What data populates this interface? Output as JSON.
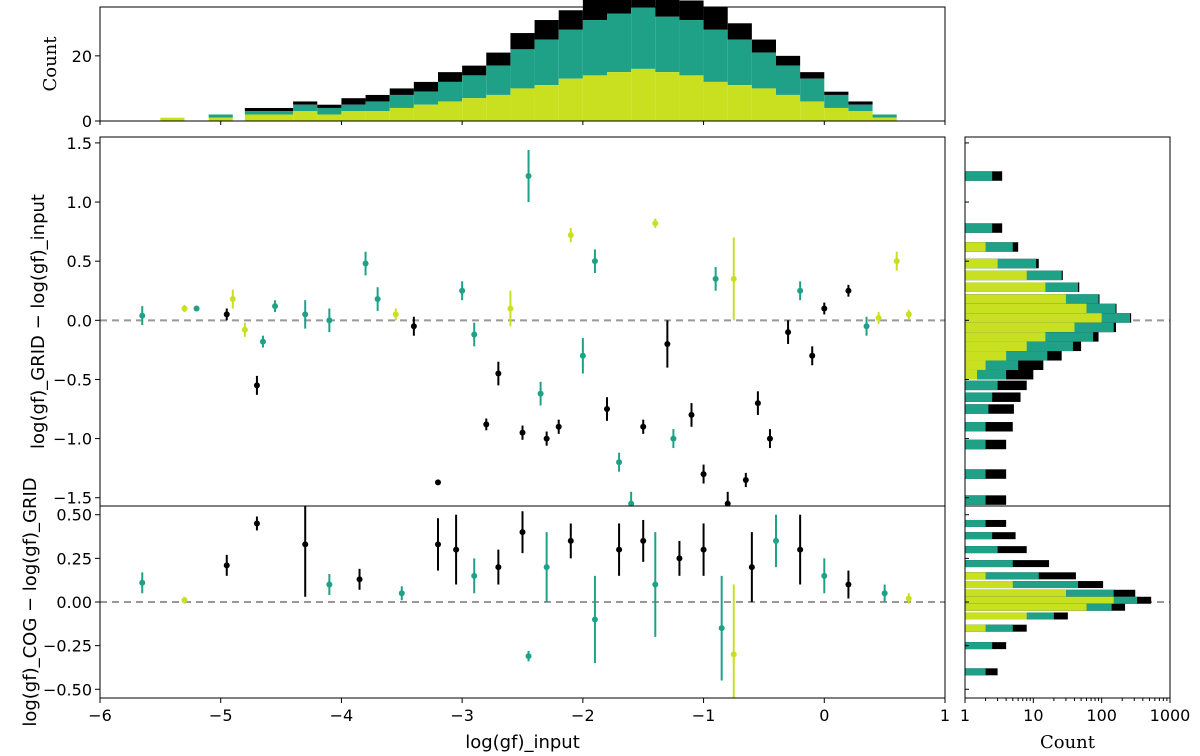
{
  "chart_data": {
    "type": "scatter",
    "colors": {
      "black": "#000000",
      "teal": "#1fa187",
      "lime": "#c8e020",
      "refline": "#999999"
    },
    "top_histogram": {
      "ylabel": "Count",
      "ylim": [
        0,
        35
      ],
      "yticks": [
        "0",
        "20"
      ],
      "bins_x": [
        -5.4,
        -5.0,
        -4.7,
        -4.5,
        -4.3,
        -4.1,
        -3.9,
        -3.7,
        -3.5,
        -3.3,
        -3.1,
        -2.9,
        -2.7,
        -2.5,
        -2.3,
        -2.1,
        -1.9,
        -1.7,
        -1.5,
        -1.3,
        -1.1,
        -0.9,
        -0.7,
        -0.5,
        -0.3,
        -0.1,
        0.1,
        0.3,
        0.5
      ],
      "lime": [
        1,
        1,
        2,
        2,
        3,
        2,
        3,
        3,
        4,
        5,
        6,
        7,
        8,
        10,
        11,
        13,
        14,
        15,
        16,
        15,
        14,
        12,
        11,
        10,
        8,
        6,
        4,
        3,
        1
      ],
      "teal": [
        0,
        1,
        1,
        1,
        2,
        2,
        2,
        3,
        4,
        4,
        6,
        7,
        9,
        12,
        14,
        15,
        17,
        18,
        19,
        17,
        17,
        16,
        14,
        11,
        9,
        7,
        4,
        2,
        1
      ],
      "black": [
        0,
        0,
        1,
        1,
        1,
        1,
        2,
        2,
        2,
        3,
        3,
        3,
        4,
        5,
        6,
        6,
        7,
        6,
        5,
        6,
        6,
        7,
        5,
        4,
        3,
        2,
        1,
        1,
        0
      ]
    },
    "main_panel": {
      "ylabel": "log(gf)_GRID − log(gf)_input",
      "ylim": [
        -1.57,
        1.55
      ],
      "yticks": [
        "1.5",
        "1.0",
        "0.5",
        "0.0",
        "−0.5",
        "−1.0",
        "−1.5"
      ],
      "points": [
        {
          "x": -5.65,
          "y": 0.04,
          "e": 0.08,
          "c": "teal"
        },
        {
          "x": -5.3,
          "y": 0.1,
          "e": 0.03,
          "c": "lime"
        },
        {
          "x": -5.2,
          "y": 0.1,
          "e": 0.02,
          "c": "teal"
        },
        {
          "x": -4.95,
          "y": 0.05,
          "e": 0.05,
          "c": "black"
        },
        {
          "x": -4.9,
          "y": 0.18,
          "e": 0.08,
          "c": "lime"
        },
        {
          "x": -4.8,
          "y": -0.08,
          "e": 0.06,
          "c": "lime"
        },
        {
          "x": -4.7,
          "y": -0.55,
          "e": 0.08,
          "c": "black"
        },
        {
          "x": -4.65,
          "y": -0.18,
          "e": 0.05,
          "c": "teal"
        },
        {
          "x": -4.55,
          "y": 0.12,
          "e": 0.05,
          "c": "teal"
        },
        {
          "x": -4.3,
          "y": 0.05,
          "e": 0.12,
          "c": "teal"
        },
        {
          "x": -4.1,
          "y": 0.0,
          "e": 0.1,
          "c": "teal"
        },
        {
          "x": -3.8,
          "y": 0.48,
          "e": 0.1,
          "c": "teal"
        },
        {
          "x": -3.7,
          "y": 0.18,
          "e": 0.1,
          "c": "teal"
        },
        {
          "x": -3.55,
          "y": 0.05,
          "e": 0.05,
          "c": "lime"
        },
        {
          "x": -3.4,
          "y": -0.05,
          "e": 0.08,
          "c": "black"
        },
        {
          "x": -3.2,
          "y": -1.37,
          "e": 0.0,
          "c": "black"
        },
        {
          "x": -3.0,
          "y": 0.25,
          "e": 0.08,
          "c": "teal"
        },
        {
          "x": -2.9,
          "y": -0.12,
          "e": 0.1,
          "c": "teal"
        },
        {
          "x": -2.8,
          "y": -0.88,
          "e": 0.05,
          "c": "black"
        },
        {
          "x": -2.7,
          "y": -0.45,
          "e": 0.1,
          "c": "black"
        },
        {
          "x": -2.6,
          "y": 0.1,
          "e": 0.15,
          "c": "lime"
        },
        {
          "x": -2.5,
          "y": -0.95,
          "e": 0.06,
          "c": "black"
        },
        {
          "x": -2.45,
          "y": 1.22,
          "e": 0.22,
          "c": "teal"
        },
        {
          "x": -2.35,
          "y": -0.62,
          "e": 0.1,
          "c": "teal"
        },
        {
          "x": -2.3,
          "y": -1.0,
          "e": 0.06,
          "c": "black"
        },
        {
          "x": -2.2,
          "y": -0.9,
          "e": 0.06,
          "c": "black"
        },
        {
          "x": -2.1,
          "y": 0.72,
          "e": 0.06,
          "c": "lime"
        },
        {
          "x": -2.0,
          "y": -0.3,
          "e": 0.15,
          "c": "teal"
        },
        {
          "x": -1.9,
          "y": 0.5,
          "e": 0.1,
          "c": "teal"
        },
        {
          "x": -1.8,
          "y": -0.75,
          "e": 0.1,
          "c": "black"
        },
        {
          "x": -1.7,
          "y": -1.2,
          "e": 0.08,
          "c": "teal"
        },
        {
          "x": -1.6,
          "y": -1.55,
          "e": 0.1,
          "c": "teal"
        },
        {
          "x": -1.5,
          "y": -0.9,
          "e": 0.06,
          "c": "black"
        },
        {
          "x": -1.4,
          "y": 0.82,
          "e": 0.04,
          "c": "lime"
        },
        {
          "x": -1.3,
          "y": -0.2,
          "e": 0.2,
          "c": "black"
        },
        {
          "x": -1.25,
          "y": -1.0,
          "e": 0.08,
          "c": "teal"
        },
        {
          "x": -1.1,
          "y": -0.8,
          "e": 0.1,
          "c": "black"
        },
        {
          "x": -1.0,
          "y": -1.3,
          "e": 0.08,
          "c": "black"
        },
        {
          "x": -0.9,
          "y": 0.35,
          "e": 0.1,
          "c": "teal"
        },
        {
          "x": -0.8,
          "y": -1.55,
          "e": 0.1,
          "c": "black"
        },
        {
          "x": -0.75,
          "y": 0.35,
          "e": 0.35,
          "c": "lime"
        },
        {
          "x": -0.65,
          "y": -1.35,
          "e": 0.06,
          "c": "black"
        },
        {
          "x": -0.55,
          "y": -0.7,
          "e": 0.1,
          "c": "black"
        },
        {
          "x": -0.45,
          "y": -1.0,
          "e": 0.08,
          "c": "black"
        },
        {
          "x": -0.3,
          "y": -0.1,
          "e": 0.1,
          "c": "black"
        },
        {
          "x": -0.2,
          "y": 0.25,
          "e": 0.08,
          "c": "teal"
        },
        {
          "x": -0.1,
          "y": -0.3,
          "e": 0.08,
          "c": "black"
        },
        {
          "x": 0.0,
          "y": 0.1,
          "e": 0.05,
          "c": "black"
        },
        {
          "x": 0.2,
          "y": 0.25,
          "e": 0.05,
          "c": "black"
        },
        {
          "x": 0.35,
          "y": -0.05,
          "e": 0.08,
          "c": "teal"
        },
        {
          "x": 0.45,
          "y": 0.02,
          "e": 0.05,
          "c": "lime"
        },
        {
          "x": 0.6,
          "y": 0.5,
          "e": 0.08,
          "c": "lime"
        },
        {
          "x": 0.7,
          "y": 0.05,
          "e": 0.04,
          "c": "lime"
        }
      ]
    },
    "bottom_panel": {
      "ylabel": "log(gf)_COG − log(gf)_GRID",
      "ylim": [
        -0.55,
        0.55
      ],
      "yticks": [
        "0.50",
        "0.25",
        "0.00",
        "−0.25",
        "−0.50"
      ],
      "points": [
        {
          "x": -5.65,
          "y": 0.11,
          "e": 0.06,
          "c": "teal"
        },
        {
          "x": -5.3,
          "y": 0.01,
          "e": 0.02,
          "c": "lime"
        },
        {
          "x": -4.95,
          "y": 0.21,
          "e": 0.06,
          "c": "black"
        },
        {
          "x": -4.7,
          "y": 0.45,
          "e": 0.04,
          "c": "black"
        },
        {
          "x": -4.3,
          "y": 0.33,
          "e": 0.3,
          "c": "black"
        },
        {
          "x": -4.1,
          "y": 0.1,
          "e": 0.06,
          "c": "teal"
        },
        {
          "x": -3.85,
          "y": 0.13,
          "e": 0.06,
          "c": "black"
        },
        {
          "x": -3.5,
          "y": 0.05,
          "e": 0.04,
          "c": "teal"
        },
        {
          "x": -3.2,
          "y": 0.33,
          "e": 0.15,
          "c": "black"
        },
        {
          "x": -3.05,
          "y": 0.3,
          "e": 0.2,
          "c": "black"
        },
        {
          "x": -2.9,
          "y": 0.15,
          "e": 0.1,
          "c": "teal"
        },
        {
          "x": -2.7,
          "y": 0.2,
          "e": 0.1,
          "c": "black"
        },
        {
          "x": -2.5,
          "y": 0.4,
          "e": 0.12,
          "c": "black"
        },
        {
          "x": -2.45,
          "y": -0.31,
          "e": 0.03,
          "c": "teal"
        },
        {
          "x": -2.3,
          "y": 0.2,
          "e": 0.2,
          "c": "teal"
        },
        {
          "x": -2.1,
          "y": 0.35,
          "e": 0.1,
          "c": "black"
        },
        {
          "x": -1.9,
          "y": -0.1,
          "e": 0.25,
          "c": "teal"
        },
        {
          "x": -1.7,
          "y": 0.3,
          "e": 0.15,
          "c": "black"
        },
        {
          "x": -1.5,
          "y": 0.35,
          "e": 0.12,
          "c": "black"
        },
        {
          "x": -1.4,
          "y": 0.1,
          "e": 0.3,
          "c": "teal"
        },
        {
          "x": -1.2,
          "y": 0.25,
          "e": 0.1,
          "c": "black"
        },
        {
          "x": -1.0,
          "y": 0.3,
          "e": 0.15,
          "c": "black"
        },
        {
          "x": -0.85,
          "y": -0.15,
          "e": 0.3,
          "c": "teal"
        },
        {
          "x": -0.75,
          "y": -0.3,
          "e": 0.4,
          "c": "lime"
        },
        {
          "x": -0.6,
          "y": 0.2,
          "e": 0.2,
          "c": "black"
        },
        {
          "x": -0.4,
          "y": 0.35,
          "e": 0.15,
          "c": "teal"
        },
        {
          "x": -0.2,
          "y": 0.3,
          "e": 0.2,
          "c": "black"
        },
        {
          "x": 0.0,
          "y": 0.15,
          "e": 0.1,
          "c": "teal"
        },
        {
          "x": 0.2,
          "y": 0.1,
          "e": 0.08,
          "c": "black"
        },
        {
          "x": 0.5,
          "y": 0.05,
          "e": 0.05,
          "c": "teal"
        },
        {
          "x": 0.7,
          "y": 0.02,
          "e": 0.03,
          "c": "lime"
        }
      ]
    },
    "xaxis": {
      "label": "log(gf)_input",
      "xlim": [
        -6,
        1
      ],
      "ticks": [
        "−6",
        "−5",
        "−4",
        "−3",
        "−2",
        "−1",
        "0",
        "1"
      ]
    },
    "right_histograms": {
      "xlabel": "Count",
      "xscale": "log",
      "xticks": [
        "1",
        "10",
        "100",
        "1000"
      ],
      "main": [
        {
          "y": 1.22,
          "lime": 1,
          "teal": 1.5,
          "black": 1
        },
        {
          "y": 0.78,
          "lime": 1,
          "teal": 1.5,
          "black": 1
        },
        {
          "y": 0.62,
          "lime": 2,
          "teal": 3,
          "black": 1
        },
        {
          "y": 0.48,
          "lime": 3,
          "teal": 8,
          "black": 1
        },
        {
          "y": 0.38,
          "lime": 8,
          "teal": 18,
          "black": 1
        },
        {
          "y": 0.28,
          "lime": 15,
          "teal": 30,
          "black": 2
        },
        {
          "y": 0.18,
          "lime": 30,
          "teal": 60,
          "black": 3
        },
        {
          "y": 0.1,
          "lime": 60,
          "teal": 100,
          "black": 5
        },
        {
          "y": 0.02,
          "lime": 100,
          "teal": 160,
          "black": 10
        },
        {
          "y": -0.06,
          "lime": 40,
          "teal": 110,
          "black": 12
        },
        {
          "y": -0.14,
          "lime": 15,
          "teal": 60,
          "black": 15
        },
        {
          "y": -0.22,
          "lime": 8,
          "teal": 30,
          "black": 12
        },
        {
          "y": -0.3,
          "lime": 4,
          "teal": 12,
          "black": 10
        },
        {
          "y": -0.38,
          "lime": 2,
          "teal": 4,
          "black": 8
        },
        {
          "y": -0.46,
          "lime": 1.5,
          "teal": 2.5,
          "black": 6
        },
        {
          "y": -0.55,
          "lime": 1,
          "teal": 2,
          "black": 5
        },
        {
          "y": -0.65,
          "lime": 1,
          "teal": 1.5,
          "black": 4
        },
        {
          "y": -0.75,
          "lime": 1,
          "teal": 1.2,
          "black": 3
        },
        {
          "y": -0.9,
          "lime": 1,
          "teal": 1,
          "black": 3
        },
        {
          "y": -1.05,
          "lime": 1,
          "teal": 1,
          "black": 2
        },
        {
          "y": -1.3,
          "lime": 1,
          "teal": 1,
          "black": 2
        },
        {
          "y": -1.52,
          "lime": 1,
          "teal": 1,
          "black": 2
        }
      ],
      "bottom": [
        {
          "y": 0.45,
          "lime": 1,
          "teal": 1,
          "black": 2
        },
        {
          "y": 0.38,
          "lime": 1,
          "teal": 1.5,
          "black": 3
        },
        {
          "y": 0.3,
          "lime": 1,
          "teal": 2,
          "black": 5
        },
        {
          "y": 0.22,
          "lime": 1,
          "teal": 4,
          "black": 12
        },
        {
          "y": 0.15,
          "lime": 2,
          "teal": 10,
          "black": 30
        },
        {
          "y": 0.1,
          "lime": 5,
          "teal": 40,
          "black": 60
        },
        {
          "y": 0.05,
          "lime": 30,
          "teal": 120,
          "black": 160
        },
        {
          "y": 0.01,
          "lime": 150,
          "teal": 180,
          "black": 200
        },
        {
          "y": -0.03,
          "lime": 60,
          "teal": 80,
          "black": 80
        },
        {
          "y": -0.08,
          "lime": 8,
          "teal": 12,
          "black": 12
        },
        {
          "y": -0.15,
          "lime": 2,
          "teal": 3,
          "black": 3
        },
        {
          "y": -0.25,
          "lime": 1,
          "teal": 1.5,
          "black": 1.5
        },
        {
          "y": -0.4,
          "lime": 1,
          "teal": 1,
          "black": 1
        }
      ]
    }
  }
}
